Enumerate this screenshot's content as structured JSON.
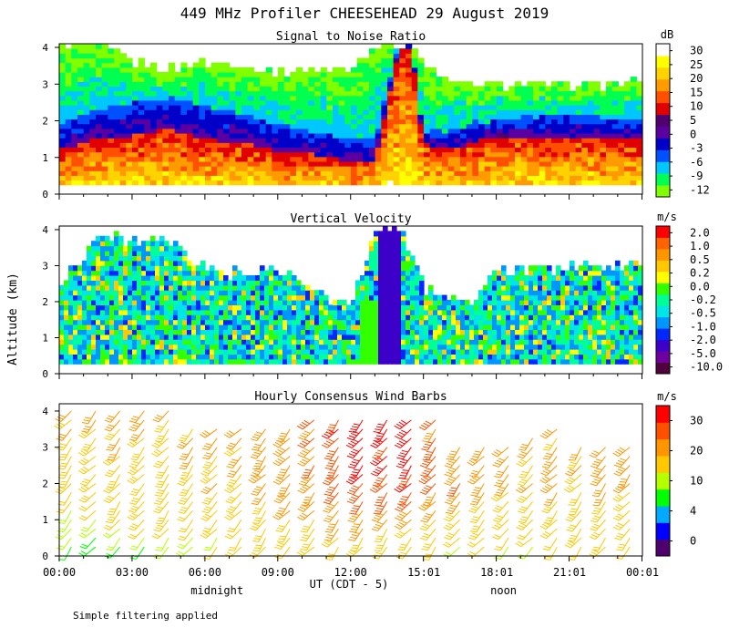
{
  "title": "449 MHz Profiler CHEESEHEAD 29 August 2019",
  "y_axis_label": "Altitude (km)",
  "x_axis_label": "UT  (CDT - 5)",
  "x_ticks": [
    "00:00",
    "03:00",
    "06:00",
    "09:00",
    "12:00",
    "15:01",
    "18:01",
    "21:01",
    "00:01"
  ],
  "x_tick_hours": [
    0,
    3,
    6,
    9,
    12,
    15.02,
    18.02,
    21.02,
    24.02
  ],
  "time_annotations": [
    {
      "text": "midnight",
      "hour": 6.5
    },
    {
      "text": "noon",
      "hour": 18.3
    }
  ],
  "footnote": "Simple filtering applied",
  "colors": {
    "snr": [
      "#80ff00",
      "#00ff50",
      "#00c8ff",
      "#0050ff",
      "#0000c8",
      "#5a00a0",
      "#50006e",
      "#e00000",
      "#ff5000",
      "#ff9b00",
      "#ffd200",
      "#ffff00",
      "#ffffff"
    ],
    "vel": [
      "#50003c",
      "#6e00a0",
      "#3c00c8",
      "#0028ff",
      "#0096ff",
      "#00e6e6",
      "#00ff96",
      "#32ff00",
      "#ffff00",
      "#ffc800",
      "#ff9600",
      "#ff6400",
      "#ff0000"
    ],
    "wind": [
      "#50006e",
      "#0000ff",
      "#00aaff",
      "#00ff00",
      "#b4ff00",
      "#ffc800",
      "#ff9600",
      "#ff5000",
      "#ff0000"
    ]
  },
  "chart_data": [
    {
      "type": "heatmap",
      "title": "Signal to Noise Ratio",
      "units": "dB",
      "xlabel": "UT  (CDT - 5)",
      "ylabel": "Altitude (km)",
      "ylim": [
        0,
        4.1
      ],
      "xlim": [
        0,
        24.02
      ],
      "y_ticks": [
        0,
        1,
        2,
        3,
        4
      ],
      "colorbar_ticks": [
        "30",
        "25",
        "20",
        "15",
        "10",
        "5",
        "0",
        "-3",
        "-6",
        "-9",
        "-12"
      ],
      "profile_hours": [
        0,
        1.5,
        3,
        4.5,
        6,
        7.5,
        9,
        10.5,
        12,
        13,
        14,
        14.5,
        15,
        16,
        17,
        18,
        19.5,
        21,
        22.5,
        24
      ],
      "boundary_high_snr_km": [
        1.2,
        1.5,
        1.6,
        1.8,
        1.5,
        1.4,
        1.2,
        1.1,
        0.9,
        0.9,
        4.0,
        4.0,
        1.4,
        1.2,
        1.4,
        1.6,
        1.6,
        1.6,
        1.5,
        1.5
      ],
      "boundary_mid_snr_km": [
        1.9,
        2.3,
        2.5,
        2.6,
        2.4,
        2.2,
        1.9,
        1.7,
        1.5,
        1.5,
        4.1,
        4.1,
        1.6,
        1.7,
        1.9,
        2.0,
        2.1,
        2.2,
        2.1,
        2.1
      ],
      "top_of_data_km": [
        4.1,
        4.1,
        3.6,
        3.4,
        3.6,
        3.5,
        3.3,
        3.4,
        3.4,
        4.1,
        4.1,
        4.1,
        3.5,
        3.1,
        3.0,
        3.0,
        3.0,
        3.0,
        3.0,
        3.1
      ]
    },
    {
      "type": "heatmap",
      "title": "Vertical Velocity",
      "units": "m/s",
      "xlabel": "UT  (CDT - 5)",
      "ylabel": "Altitude (km)",
      "ylim": [
        0,
        4.1
      ],
      "xlim": [
        0,
        24.02
      ],
      "y_ticks": [
        0,
        1,
        2,
        3,
        4
      ],
      "colorbar_ticks": [
        "2.0",
        "1.0",
        "0.5",
        "0.2",
        "0.0",
        "-0.2",
        "-0.5",
        "-1.0",
        "-2.0",
        "-5.0",
        "-10.0"
      ],
      "profile_hours": [
        0,
        1.5,
        3,
        4.5,
        6,
        7.5,
        9,
        10.5,
        12,
        13,
        14,
        15,
        16,
        17,
        18,
        19.5,
        21,
        22.5,
        24
      ],
      "top_of_data_km": [
        2.4,
        3.8,
        3.7,
        3.6,
        2.9,
        2.8,
        2.9,
        2.3,
        1.8,
        4.1,
        4.1,
        2.4,
        2.2,
        2.0,
        2.8,
        2.9,
        3.0,
        3.0,
        3.0
      ],
      "rain_band_hours": [
        13.2,
        14.0
      ],
      "rain_band_velocity_ms": -5.0
    },
    {
      "type": "wind_barbs",
      "title": "Hourly Consensus Wind Barbs",
      "units": "m/s",
      "xlabel": "UT  (CDT - 5)",
      "ylabel": "Altitude (km)",
      "ylim": [
        0,
        4.2
      ],
      "xlim": [
        0,
        24.02
      ],
      "y_ticks": [
        0,
        1,
        2,
        3,
        4
      ],
      "colorbar_ticks": [
        "30",
        "20",
        "10",
        "4",
        "0"
      ],
      "profile_hours": [
        0,
        1,
        2,
        3,
        4,
        5,
        6,
        7,
        8,
        9,
        10,
        11,
        12,
        13,
        14,
        15,
        16,
        17,
        18,
        19,
        20,
        21,
        22,
        23
      ],
      "speed_near_surface_ms": [
        8,
        8,
        9,
        10,
        10,
        10,
        12,
        12,
        13,
        14,
        14,
        15,
        16,
        16,
        16,
        14,
        12,
        12,
        12,
        12,
        13,
        14,
        14,
        14
      ],
      "speed_at_2km_ms": [
        16,
        17,
        18,
        18,
        18,
        18,
        19,
        20,
        21,
        22,
        24,
        26,
        28,
        28,
        28,
        26,
        24,
        22,
        20,
        20,
        20,
        20,
        21,
        22
      ],
      "speed_at_4km_ms": [
        20,
        20,
        21,
        21,
        21,
        22,
        22,
        22,
        23,
        24,
        26,
        28,
        30,
        30,
        30,
        26,
        24,
        22,
        22,
        22,
        22,
        22,
        22,
        22
      ],
      "top_of_data_km": [
        4.2,
        4.2,
        4.2,
        4.1,
        4.1,
        3.7,
        3.6,
        3.5,
        3.7,
        3.6,
        3.9,
        3.8,
        3.8,
        3.8,
        3.8,
        3.8,
        3.2,
        3.1,
        3.2,
        3.3,
        3.5,
        3.2,
        3.2,
        3.1
      ],
      "wind_direction_deg": 220
    }
  ]
}
